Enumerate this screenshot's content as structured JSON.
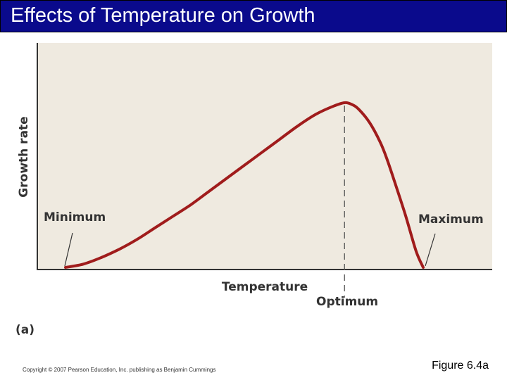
{
  "slide": {
    "title": "Effects of Temperature on Growth",
    "copyright": "Copyright © 2007 Pearson Education, Inc. publishing as Benjamin Cummings",
    "figure_label": "Figure 6.4a"
  },
  "colors": {
    "title_bg": "#0a0a8c",
    "title_text": "#ffffff",
    "plot_bg": "#efeae0",
    "curve": "#a01c1c",
    "axis": "#333333"
  },
  "chart_data": {
    "type": "line",
    "title": "",
    "xlabel": "Temperature",
    "ylabel": "Growth rate",
    "panel_label": "(a)",
    "xlim": [
      0,
      100
    ],
    "ylim": [
      0,
      100
    ],
    "grid": false,
    "legend": "none",
    "series": [
      {
        "x": [
          0,
          5,
          10,
          15,
          20,
          25,
          30,
          35,
          40,
          45,
          50,
          55,
          60,
          65,
          70,
          75,
          78,
          80,
          82,
          85,
          88,
          90,
          92,
          95,
          98,
          100
        ],
        "y": [
          0,
          2,
          6,
          11,
          17,
          24,
          31,
          38,
          46,
          54,
          62,
          70,
          78,
          86,
          93,
          98,
          100,
          99,
          96,
          88,
          76,
          65,
          52,
          32,
          10,
          0
        ]
      }
    ],
    "annotations": [
      {
        "text": "Minimum",
        "x": 0,
        "y": 0
      },
      {
        "text": "Optimum",
        "x": 78,
        "y": 100
      },
      {
        "text": "Maximum",
        "x": 100,
        "y": 0
      }
    ]
  }
}
